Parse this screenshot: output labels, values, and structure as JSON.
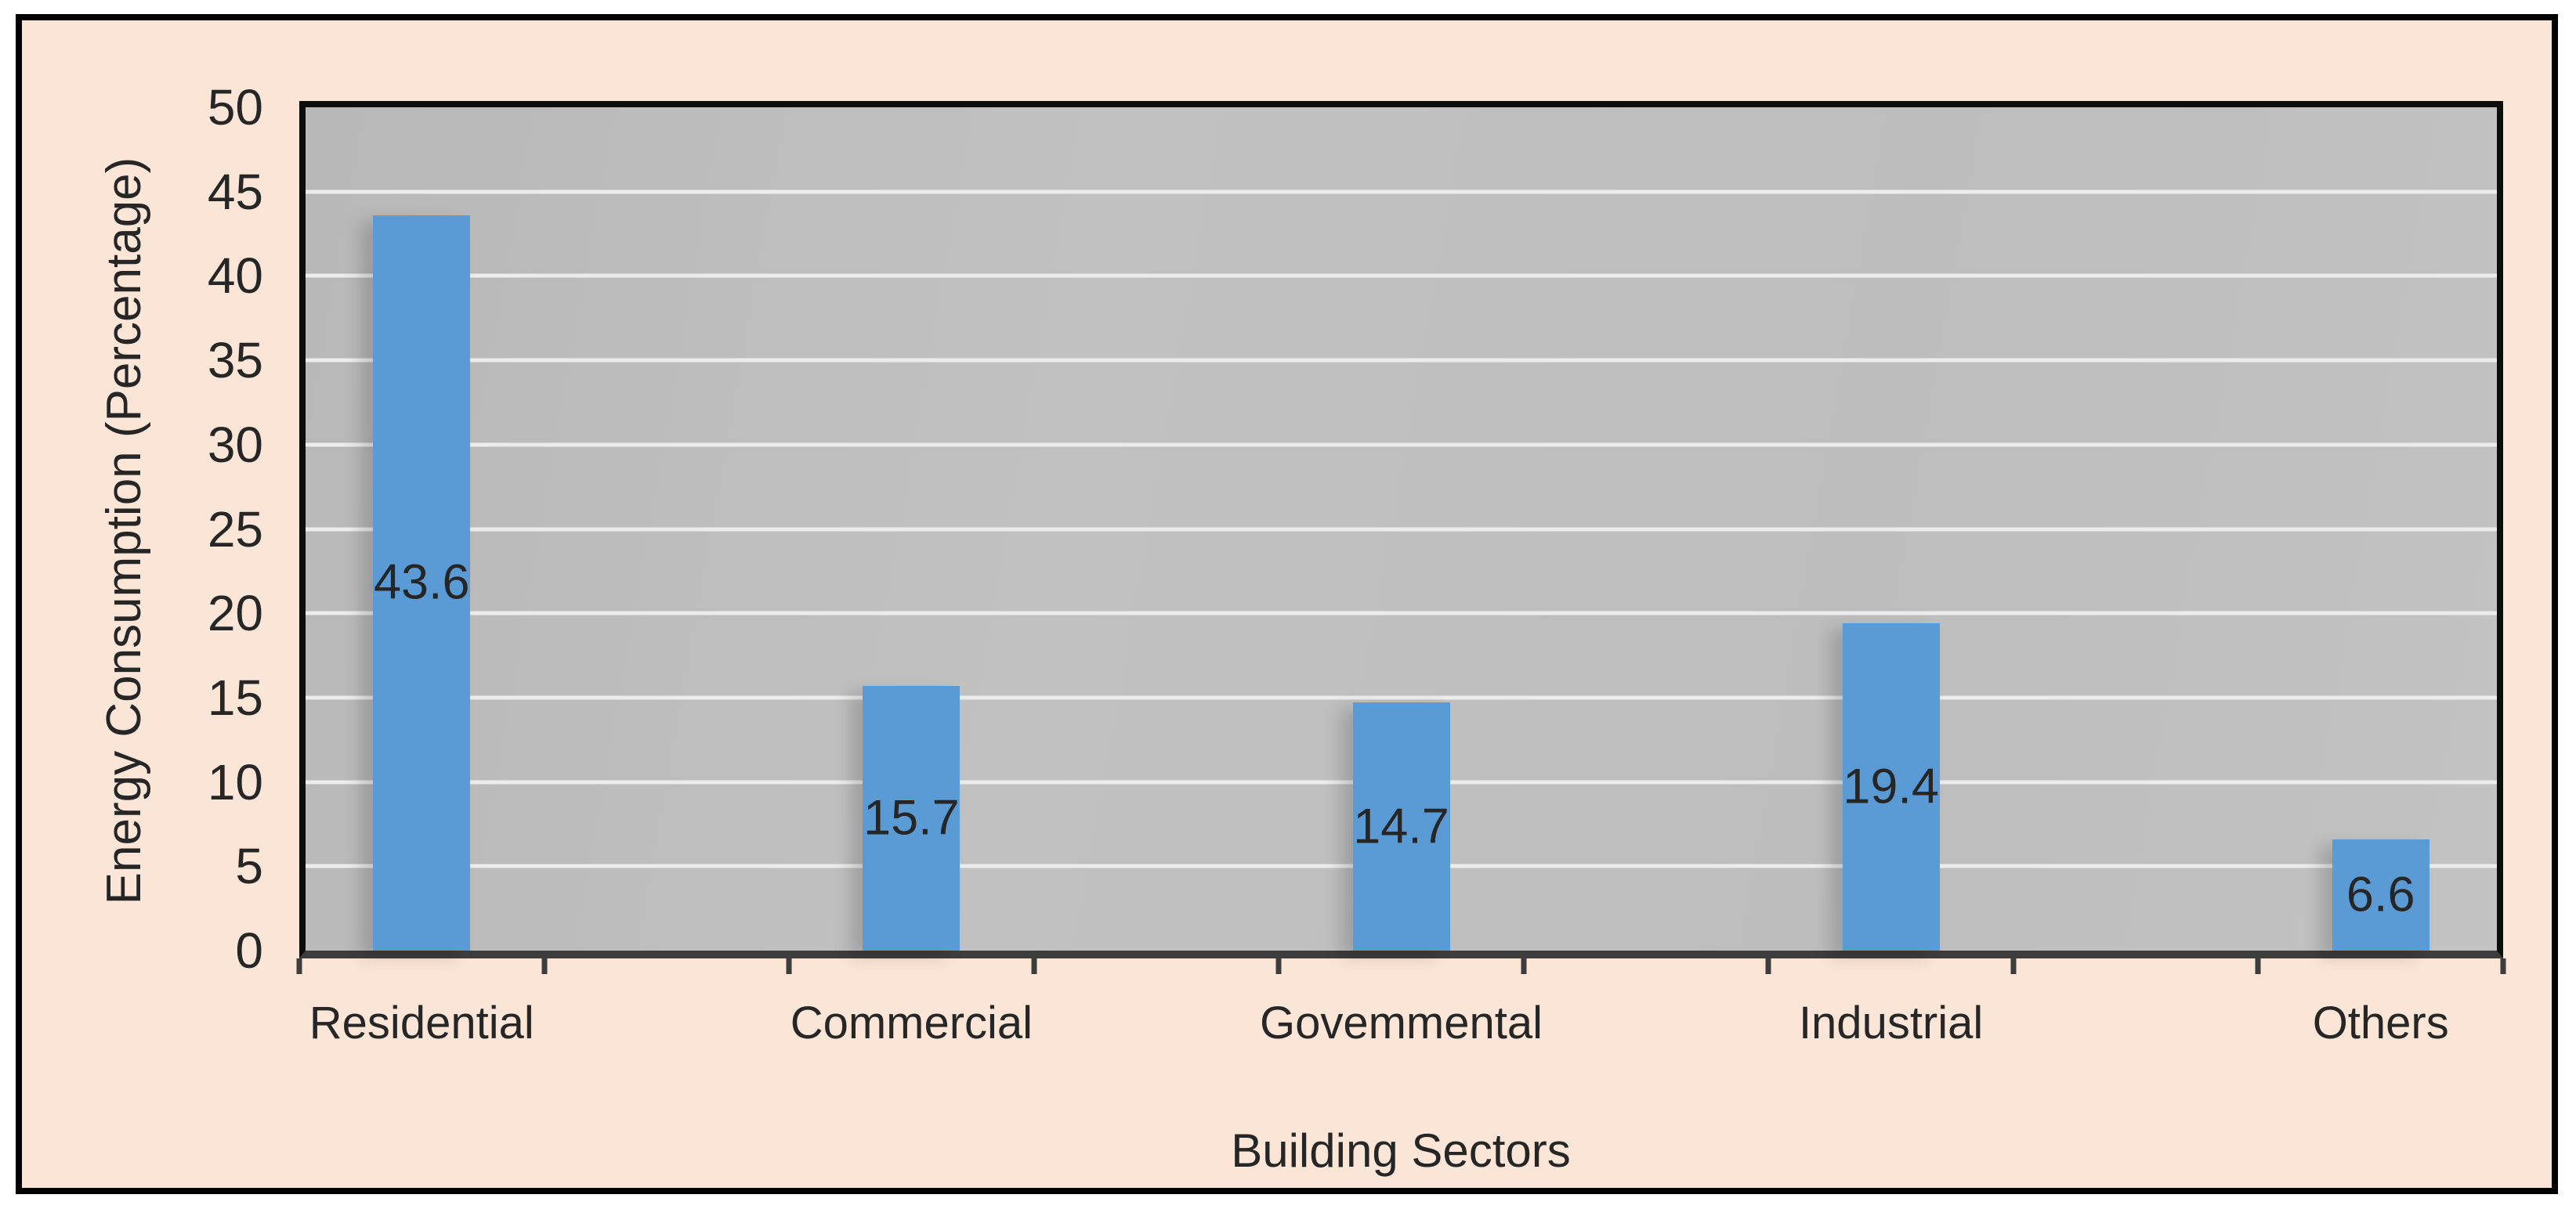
{
  "chart_data": {
    "type": "bar",
    "title": "",
    "categories": [
      "Residential",
      "Commercial",
      "Govemmental",
      "Industrial",
      "Others"
    ],
    "values": [
      43.6,
      15.7,
      14.7,
      19.4,
      6.6
    ],
    "value_labels": [
      "43.6",
      "15.7",
      "14.7",
      "19.4",
      "6.6"
    ],
    "xlabel": "Building Sectors",
    "ylabel": "Energy Consumption (Percentage)",
    "ylim": [
      0,
      50
    ],
    "yticks": [
      0,
      5,
      10,
      15,
      20,
      25,
      30,
      35,
      40,
      45,
      50
    ],
    "ytick_step": 5,
    "x_intervals": 9,
    "bar_slot_indices": [
      0,
      2,
      4,
      6,
      8
    ],
    "value_label_position": "center-of-bar",
    "legend_position": "none",
    "grid": "horizontal-white-gridlines"
  },
  "colors": {
    "page_background": "#ffffff",
    "chart_background": "#fbe5d6",
    "plot_background": "#bdbdbd",
    "bar_fill": "#5b9bd5",
    "gridline": "#ececec",
    "axis_line": "#3d3d3d",
    "plot_border": "#0d0d0d",
    "frame_border": "#000000",
    "text": "#262626"
  }
}
